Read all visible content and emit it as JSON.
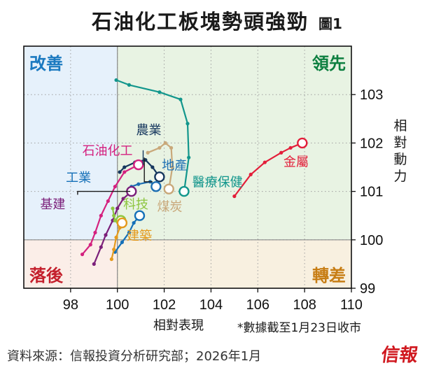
{
  "title": "石油化工板塊勢頭強勁",
  "figure_label": "圖1",
  "note": "*數據截至1月23日收市",
  "source": "資料來源：信報投資分析研究部；2026年1月",
  "logo_text": "信報",
  "colors": {
    "improving": "#e6f1fb",
    "leading": "#e8f3e3",
    "lagging": "#fbeee8",
    "weakening": "#f8f0e0"
  },
  "chart_data": {
    "type": "scatter",
    "xlabel": "相對表現",
    "ylabel": "相對動力",
    "xlim": [
      96,
      110
    ],
    "ylim": [
      99,
      104
    ],
    "center": [
      100,
      100
    ],
    "x_ticks": [
      98,
      100,
      102,
      104,
      106,
      108,
      110
    ],
    "y_ticks": [
      99,
      100,
      101,
      102,
      103
    ],
    "grid": true,
    "quadrants": [
      {
        "label": "改善",
        "color": "#1a79c0",
        "corner": "top-left"
      },
      {
        "label": "領先",
        "color": "#0d7f40",
        "corner": "top-right"
      },
      {
        "label": "落後",
        "color": "#c41f2c",
        "corner": "bottom-left"
      },
      {
        "label": "轉差",
        "color": "#c77d14",
        "corner": "bottom-right"
      }
    ],
    "series": [
      {
        "name": "醫療保健",
        "color": "#12968c",
        "points": [
          [
            99.95,
            103.3
          ],
          [
            100.5,
            103.2
          ],
          [
            101.8,
            103.05
          ],
          [
            102.7,
            102.9
          ],
          [
            103.0,
            102.4
          ],
          [
            103.05,
            101.7
          ],
          [
            102.85,
            101.0
          ]
        ]
      },
      {
        "name": "金屬",
        "color": "#e31e3a",
        "points": [
          [
            105.0,
            100.9
          ],
          [
            105.7,
            101.35
          ],
          [
            106.3,
            101.6
          ],
          [
            107.0,
            101.8
          ],
          [
            107.4,
            101.9
          ],
          [
            107.9,
            102.0
          ]
        ]
      },
      {
        "name": "農業",
        "color": "#16375e",
        "points": [
          [
            100.1,
            101.4
          ],
          [
            100.3,
            101.5
          ],
          [
            100.75,
            101.6
          ],
          [
            101.2,
            101.65
          ],
          [
            101.5,
            101.5
          ],
          [
            101.8,
            101.3
          ]
        ]
      },
      {
        "name": "地產",
        "color": "#1d6fb3",
        "points": [
          [
            100.6,
            101.1
          ],
          [
            100.9,
            101.15
          ],
          [
            101.4,
            101.2
          ],
          [
            101.65,
            101.1
          ]
        ]
      },
      {
        "name": "煤炭",
        "color": "#c9a87a",
        "points": [
          [
            101.3,
            101.8
          ],
          [
            101.8,
            101.9
          ],
          [
            102.05,
            102.0
          ],
          [
            102.3,
            101.9
          ],
          [
            102.35,
            101.5
          ],
          [
            102.2,
            101.05
          ]
        ]
      },
      {
        "name": "石油化工",
        "color": "#d4217f",
        "points": [
          [
            98.5,
            99.7
          ],
          [
            98.85,
            99.9
          ],
          [
            99.05,
            100.15
          ],
          [
            99.3,
            100.5
          ],
          [
            99.6,
            100.8
          ],
          [
            99.9,
            101.1
          ],
          [
            100.3,
            101.4
          ],
          [
            100.9,
            101.55
          ]
        ]
      },
      {
        "name": "工業",
        "color": "#1570b8",
        "points": [
          [
            99.9,
            99.75
          ],
          [
            100.2,
            99.95
          ],
          [
            100.5,
            100.15
          ],
          [
            100.7,
            100.35
          ],
          [
            100.95,
            100.5
          ]
        ]
      },
      {
        "name": "基建",
        "color": "#7b1f7a",
        "points": [
          [
            99.0,
            99.5
          ],
          [
            99.3,
            99.85
          ],
          [
            99.5,
            100.1
          ],
          [
            99.8,
            100.4
          ],
          [
            100.0,
            100.65
          ],
          [
            100.25,
            100.85
          ],
          [
            100.6,
            101.0
          ]
        ]
      },
      {
        "name": "科技",
        "color": "#8dc63f",
        "points": [
          [
            99.8,
            100.65
          ],
          [
            99.85,
            100.5
          ],
          [
            99.9,
            100.4
          ],
          [
            100.05,
            100.35
          ],
          [
            100.15,
            100.4
          ]
        ]
      },
      {
        "name": "建築",
        "color": "#e59a1d",
        "points": [
          [
            99.75,
            99.6
          ],
          [
            99.85,
            99.8
          ],
          [
            99.95,
            100.05
          ],
          [
            100.1,
            100.25
          ],
          [
            100.2,
            100.35
          ]
        ]
      }
    ]
  }
}
